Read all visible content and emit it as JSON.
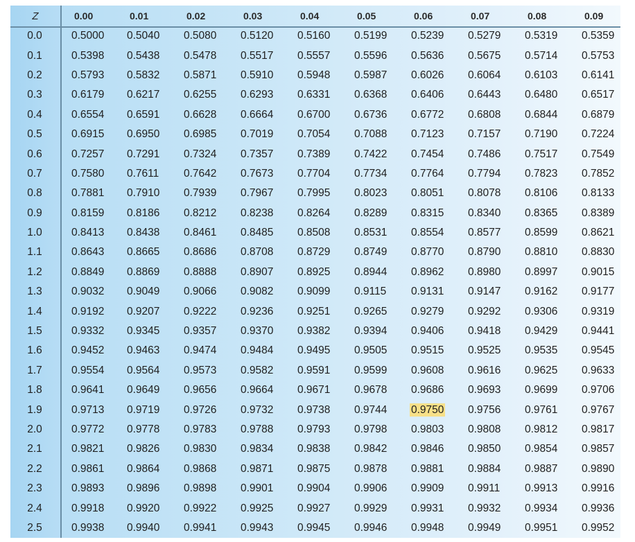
{
  "header": {
    "z_label": "Z",
    "columns": [
      "0.00",
      "0.01",
      "0.02",
      "0.03",
      "0.04",
      "0.05",
      "0.06",
      "0.07",
      "0.08",
      "0.09"
    ]
  },
  "highlight": {
    "row": 19,
    "col": 6,
    "color": "#f7e088"
  },
  "rows": [
    {
      "z": "0.0",
      "v": [
        "0.5000",
        "0.5040",
        "0.5080",
        "0.5120",
        "0.5160",
        "0.5199",
        "0.5239",
        "0.5279",
        "0.5319",
        "0.5359"
      ]
    },
    {
      "z": "0.1",
      "v": [
        "0.5398",
        "0.5438",
        "0.5478",
        "0.5517",
        "0.5557",
        "0.5596",
        "0.5636",
        "0.5675",
        "0.5714",
        "0.5753"
      ]
    },
    {
      "z": "0.2",
      "v": [
        "0.5793",
        "0.5832",
        "0.5871",
        "0.5910",
        "0.5948",
        "0.5987",
        "0.6026",
        "0.6064",
        "0.6103",
        "0.6141"
      ]
    },
    {
      "z": "0.3",
      "v": [
        "0.6179",
        "0.6217",
        "0.6255",
        "0.6293",
        "0.6331",
        "0.6368",
        "0.6406",
        "0.6443",
        "0.6480",
        "0.6517"
      ]
    },
    {
      "z": "0.4",
      "v": [
        "0.6554",
        "0.6591",
        "0.6628",
        "0.6664",
        "0.6700",
        "0.6736",
        "0.6772",
        "0.6808",
        "0.6844",
        "0.6879"
      ]
    },
    {
      "z": "0.5",
      "v": [
        "0.6915",
        "0.6950",
        "0.6985",
        "0.7019",
        "0.7054",
        "0.7088",
        "0.7123",
        "0.7157",
        "0.7190",
        "0.7224"
      ]
    },
    {
      "z": "0.6",
      "v": [
        "0.7257",
        "0.7291",
        "0.7324",
        "0.7357",
        "0.7389",
        "0.7422",
        "0.7454",
        "0.7486",
        "0.7517",
        "0.7549"
      ]
    },
    {
      "z": "0.7",
      "v": [
        "0.7580",
        "0.7611",
        "0.7642",
        "0.7673",
        "0.7704",
        "0.7734",
        "0.7764",
        "0.7794",
        "0.7823",
        "0.7852"
      ]
    },
    {
      "z": "0.8",
      "v": [
        "0.7881",
        "0.7910",
        "0.7939",
        "0.7967",
        "0.7995",
        "0.8023",
        "0.8051",
        "0.8078",
        "0.8106",
        "0.8133"
      ]
    },
    {
      "z": "0.9",
      "v": [
        "0.8159",
        "0.8186",
        "0.8212",
        "0.8238",
        "0.8264",
        "0.8289",
        "0.8315",
        "0.8340",
        "0.8365",
        "0.8389"
      ]
    },
    {
      "z": "1.0",
      "v": [
        "0.8413",
        "0.8438",
        "0.8461",
        "0.8485",
        "0.8508",
        "0.8531",
        "0.8554",
        "0.8577",
        "0.8599",
        "0.8621"
      ]
    },
    {
      "z": "1.1",
      "v": [
        "0.8643",
        "0.8665",
        "0.8686",
        "0.8708",
        "0.8729",
        "0.8749",
        "0.8770",
        "0.8790",
        "0.8810",
        "0.8830"
      ]
    },
    {
      "z": "1.2",
      "v": [
        "0.8849",
        "0.8869",
        "0.8888",
        "0.8907",
        "0.8925",
        "0.8944",
        "0.8962",
        "0.8980",
        "0.8997",
        "0.9015"
      ]
    },
    {
      "z": "1.3",
      "v": [
        "0.9032",
        "0.9049",
        "0.9066",
        "0.9082",
        "0.9099",
        "0.9115",
        "0.9131",
        "0.9147",
        "0.9162",
        "0.9177"
      ]
    },
    {
      "z": "1.4",
      "v": [
        "0.9192",
        "0.9207",
        "0.9222",
        "0.9236",
        "0.9251",
        "0.9265",
        "0.9279",
        "0.9292",
        "0.9306",
        "0.9319"
      ]
    },
    {
      "z": "1.5",
      "v": [
        "0.9332",
        "0.9345",
        "0.9357",
        "0.9370",
        "0.9382",
        "0.9394",
        "0.9406",
        "0.9418",
        "0.9429",
        "0.9441"
      ]
    },
    {
      "z": "1.6",
      "v": [
        "0.9452",
        "0.9463",
        "0.9474",
        "0.9484",
        "0.9495",
        "0.9505",
        "0.9515",
        "0.9525",
        "0.9535",
        "0.9545"
      ]
    },
    {
      "z": "1.7",
      "v": [
        "0.9554",
        "0.9564",
        "0.9573",
        "0.9582",
        "0.9591",
        "0.9599",
        "0.9608",
        "0.9616",
        "0.9625",
        "0.9633"
      ]
    },
    {
      "z": "1.8",
      "v": [
        "0.9641",
        "0.9649",
        "0.9656",
        "0.9664",
        "0.9671",
        "0.9678",
        "0.9686",
        "0.9693",
        "0.9699",
        "0.9706"
      ]
    },
    {
      "z": "1.9",
      "v": [
        "0.9713",
        "0.9719",
        "0.9726",
        "0.9732",
        "0.9738",
        "0.9744",
        "0.9750",
        "0.9756",
        "0.9761",
        "0.9767"
      ]
    },
    {
      "z": "2.0",
      "v": [
        "0.9772",
        "0.9778",
        "0.9783",
        "0.9788",
        "0.9793",
        "0.9798",
        "0.9803",
        "0.9808",
        "0.9812",
        "0.9817"
      ]
    },
    {
      "z": "2.1",
      "v": [
        "0.9821",
        "0.9826",
        "0.9830",
        "0.9834",
        "0.9838",
        "0.9842",
        "0.9846",
        "0.9850",
        "0.9854",
        "0.9857"
      ]
    },
    {
      "z": "2.2",
      "v": [
        "0.9861",
        "0.9864",
        "0.9868",
        "0.9871",
        "0.9875",
        "0.9878",
        "0.9881",
        "0.9884",
        "0.9887",
        "0.9890"
      ]
    },
    {
      "z": "2.3",
      "v": [
        "0.9893",
        "0.9896",
        "0.9898",
        "0.9901",
        "0.9904",
        "0.9906",
        "0.9909",
        "0.9911",
        "0.9913",
        "0.9916"
      ]
    },
    {
      "z": "2.4",
      "v": [
        "0.9918",
        "0.9920",
        "0.9922",
        "0.9925",
        "0.9927",
        "0.9929",
        "0.9931",
        "0.9932",
        "0.9934",
        "0.9936"
      ]
    },
    {
      "z": "2.5",
      "v": [
        "0.9938",
        "0.9940",
        "0.9941",
        "0.9943",
        "0.9945",
        "0.9946",
        "0.9948",
        "0.9949",
        "0.9951",
        "0.9952"
      ]
    }
  ]
}
